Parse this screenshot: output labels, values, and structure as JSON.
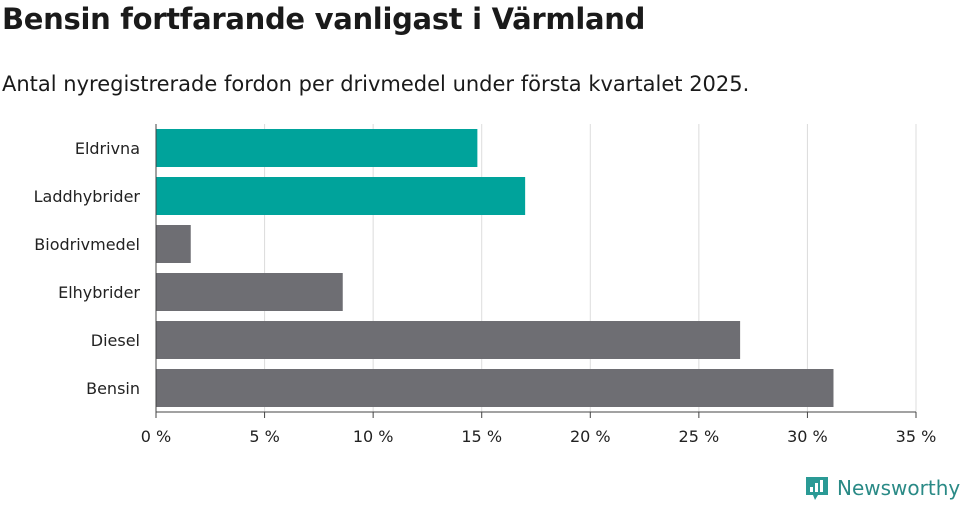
{
  "title": "Bensin fortfarande vanligast i Värmland",
  "subtitle": "Antal nyregistrerade fordon per drivmedel under första kvartalet 2025.",
  "brand": {
    "name": "Newsworthy",
    "icon": "newsworthy-logo-icon",
    "color": "#2a9a95"
  },
  "chart_data": {
    "type": "bar",
    "orientation": "horizontal",
    "title": "Bensin fortfarande vanligast i Värmland",
    "subtitle": "Antal nyregistrerade fordon per drivmedel under första kvartalet 2025.",
    "xlabel": "",
    "ylabel": "",
    "categories": [
      "Eldrivna",
      "Laddhybrider",
      "Biodrivmedel",
      "Elhybrider",
      "Diesel",
      "Bensin"
    ],
    "values": [
      14.8,
      17.0,
      1.6,
      8.6,
      26.9,
      31.2
    ],
    "unit": "%",
    "xlim": [
      0,
      35
    ],
    "ticks": [
      0,
      5,
      10,
      15,
      20,
      25,
      30,
      35
    ],
    "tick_labels": [
      "0 %",
      "5 %",
      "10 %",
      "15 %",
      "20 %",
      "25 %",
      "30 %",
      "35 %"
    ],
    "grid": "vertical",
    "legend": "none",
    "colors": {
      "highlight": "#00a39b",
      "default": "#6e6e73"
    },
    "highlighted": [
      "Eldrivna",
      "Laddhybrider"
    ]
  }
}
